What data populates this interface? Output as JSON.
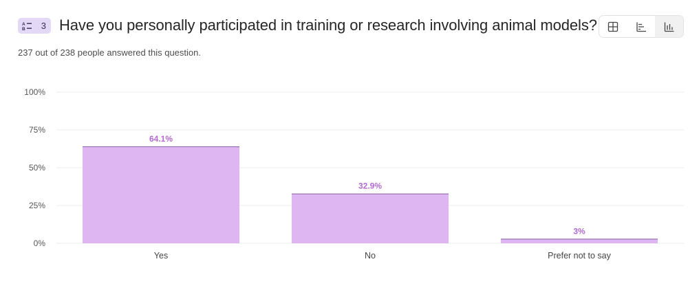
{
  "question": {
    "number": "3",
    "title": "Have you personally participated in training or research involving animal models?",
    "answered_text": "237 out of 238 people answered this question."
  },
  "view_toggle": {
    "options": [
      {
        "icon": "table-icon",
        "active": false
      },
      {
        "icon": "horizontal-bar-chart-icon",
        "active": false
      },
      {
        "icon": "vertical-bar-chart-icon",
        "active": true
      }
    ]
  },
  "colors": {
    "bar_fill": "#deb6f2",
    "bar_top": "#8a5fa0",
    "data_label": "#b36ad2",
    "badge_bg": "#e4d8f7",
    "grid": "#ececec"
  },
  "chart_data": {
    "type": "bar",
    "categories": [
      "Yes",
      "No",
      "Prefer not to say"
    ],
    "values": [
      64.1,
      32.9,
      3
    ],
    "data_labels": [
      "64.1%",
      "32.9%",
      "3%"
    ],
    "y_ticks": [
      {
        "value": 0,
        "label": "0%"
      },
      {
        "value": 25,
        "label": "25%"
      },
      {
        "value": 50,
        "label": "50%"
      },
      {
        "value": 75,
        "label": "75%"
      },
      {
        "value": 100,
        "label": "100%"
      }
    ],
    "ylim": [
      0,
      100
    ],
    "grid": true,
    "title": "",
    "xlabel": "",
    "ylabel": ""
  }
}
